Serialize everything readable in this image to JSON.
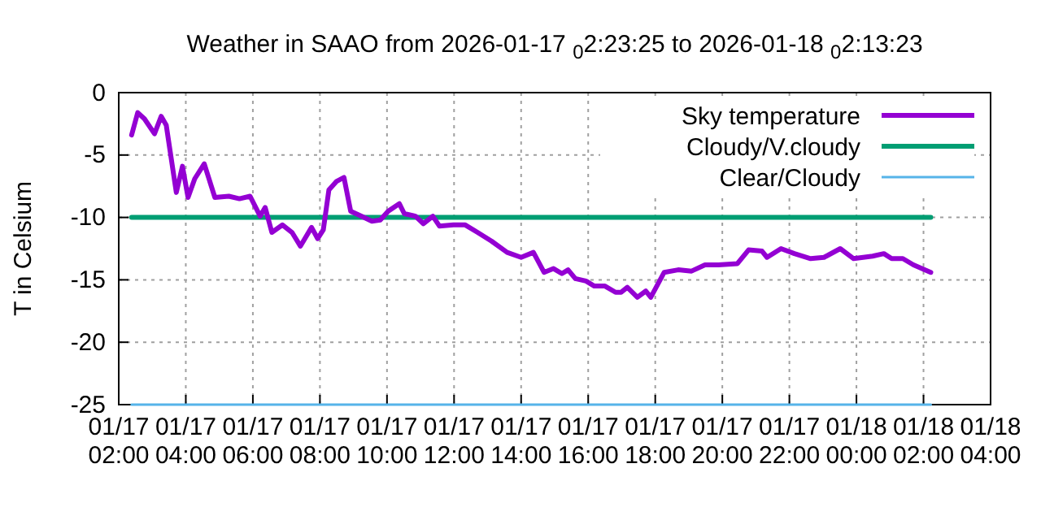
{
  "chart_data": {
    "type": "line",
    "title": "Weather in SAAO from 2026-01-17 $_{0}$2:23:25 to 2026-01-18 $_{0}$2:13:23",
    "ylabel": "T in Celsium",
    "xlim": [
      "2026-01-17T02:00",
      "2026-01-18T04:00"
    ],
    "xticks": [
      {
        "value": "2026-01-17T02:00",
        "label": "01/17\n02:00"
      },
      {
        "value": "2026-01-17T04:00",
        "label": "01/17\n04:00"
      },
      {
        "value": "2026-01-17T06:00",
        "label": "01/17\n06:00"
      },
      {
        "value": "2026-01-17T08:00",
        "label": "01/17\n08:00"
      },
      {
        "value": "2026-01-17T10:00",
        "label": "01/17\n10:00"
      },
      {
        "value": "2026-01-17T12:00",
        "label": "01/17\n12:00"
      },
      {
        "value": "2026-01-17T14:00",
        "label": "01/17\n14:00"
      },
      {
        "value": "2026-01-17T16:00",
        "label": "01/17\n16:00"
      },
      {
        "value": "2026-01-17T18:00",
        "label": "01/17\n18:00"
      },
      {
        "value": "2026-01-17T20:00",
        "label": "01/17\n20:00"
      },
      {
        "value": "2026-01-17T22:00",
        "label": "01/17\n22:00"
      },
      {
        "value": "2026-01-18T00:00",
        "label": "01/18\n00:00"
      },
      {
        "value": "2026-01-18T02:00",
        "label": "01/18\n02:00"
      },
      {
        "value": "2026-01-18T04:00",
        "label": "01/18\n04:00"
      }
    ],
    "ylim": [
      -25,
      0
    ],
    "yticks": [
      -25,
      -20,
      -15,
      -10,
      -5,
      0
    ],
    "grid": true,
    "legend": "top right",
    "line_style": "solid",
    "marker": "none",
    "series": [
      {
        "name": "Sky temperature",
        "color": "#9400d3",
        "x": [
          "2026-01-17T02:23",
          "2026-01-17T02:34",
          "2026-01-17T02:46",
          "2026-01-17T03:04",
          "2026-01-17T03:16",
          "2026-01-17T03:25",
          "2026-01-17T03:32",
          "2026-01-17T03:43",
          "2026-01-17T03:54",
          "2026-01-17T04:04",
          "2026-01-17T04:16",
          "2026-01-17T04:33",
          "2026-01-17T04:52",
          "2026-01-17T05:17",
          "2026-01-17T05:36",
          "2026-01-17T05:55",
          "2026-01-17T06:13",
          "2026-01-17T06:22",
          "2026-01-17T06:34",
          "2026-01-17T06:53",
          "2026-01-17T07:10",
          "2026-01-17T07:25",
          "2026-01-17T07:45",
          "2026-01-17T07:56",
          "2026-01-17T08:06",
          "2026-01-17T08:16",
          "2026-01-17T08:30",
          "2026-01-17T08:43",
          "2026-01-17T08:55",
          "2026-01-17T09:14",
          "2026-01-17T09:33",
          "2026-01-17T09:48",
          "2026-01-17T10:02",
          "2026-01-17T10:22",
          "2026-01-17T10:31",
          "2026-01-17T10:51",
          "2026-01-17T11:05",
          "2026-01-17T11:22",
          "2026-01-17T11:34",
          "2026-01-17T11:59",
          "2026-01-17T12:20",
          "2026-01-17T12:42",
          "2026-01-17T13:07",
          "2026-01-17T13:35",
          "2026-01-17T14:00",
          "2026-01-17T14:22",
          "2026-01-17T14:41",
          "2026-01-17T14:58",
          "2026-01-17T15:13",
          "2026-01-17T15:24",
          "2026-01-17T15:37",
          "2026-01-17T15:56",
          "2026-01-17T16:11",
          "2026-01-17T16:30",
          "2026-01-17T16:49",
          "2026-01-17T16:59",
          "2026-01-17T17:10",
          "2026-01-17T17:28",
          "2026-01-17T17:43",
          "2026-01-17T17:52",
          "2026-01-17T18:16",
          "2026-01-17T18:41",
          "2026-01-17T19:05",
          "2026-01-17T19:29",
          "2026-01-17T19:53",
          "2026-01-17T20:27",
          "2026-01-17T20:47",
          "2026-01-17T21:11",
          "2026-01-17T21:20",
          "2026-01-17T21:45",
          "2026-01-17T22:09",
          "2026-01-17T22:38",
          "2026-01-17T23:02",
          "2026-01-17T23:31",
          "2026-01-17T23:55",
          "2026-01-18T00:29",
          "2026-01-18T00:49",
          "2026-01-18T01:03",
          "2026-01-18T01:23",
          "2026-01-18T01:42",
          "2026-01-18T02:13"
        ],
        "values": [
          -3.4,
          -1.6,
          -2.1,
          -3.3,
          -1.9,
          -2.6,
          -4.7,
          -8.0,
          -5.9,
          -8.4,
          -6.9,
          -5.7,
          -8.4,
          -8.3,
          -8.5,
          -8.3,
          -9.9,
          -9.2,
          -11.2,
          -10.6,
          -11.2,
          -12.3,
          -10.8,
          -11.7,
          -11.0,
          -7.8,
          -7.1,
          -6.8,
          -9.5,
          -9.9,
          -10.3,
          -10.2,
          -9.5,
          -8.9,
          -9.7,
          -9.9,
          -10.5,
          -9.9,
          -10.7,
          -10.6,
          -10.6,
          -11.2,
          -11.9,
          -12.8,
          -13.2,
          -12.8,
          -14.4,
          -14.1,
          -14.5,
          -14.2,
          -14.9,
          -15.1,
          -15.5,
          -15.5,
          -16.0,
          -16.0,
          -15.6,
          -16.4,
          -15.9,
          -16.4,
          -14.4,
          -14.2,
          -14.3,
          -13.8,
          -13.8,
          -13.7,
          -12.6,
          -12.7,
          -13.2,
          -12.5,
          -12.9,
          -13.3,
          -13.2,
          -12.5,
          -13.3,
          -13.1,
          -12.9,
          -13.3,
          -13.3,
          -13.8,
          -14.4
        ]
      },
      {
        "name": "Cloudy/V.cloudy",
        "color": "#009e73",
        "x": [
          "2026-01-17T02:23",
          "2026-01-18T02:13"
        ],
        "values": [
          -10,
          -10
        ]
      },
      {
        "name": "Clear/Cloudy",
        "color": "#56b4e9",
        "x": [
          "2026-01-17T02:23",
          "2026-01-18T02:13"
        ],
        "values": [
          -25,
          -25
        ]
      }
    ]
  }
}
